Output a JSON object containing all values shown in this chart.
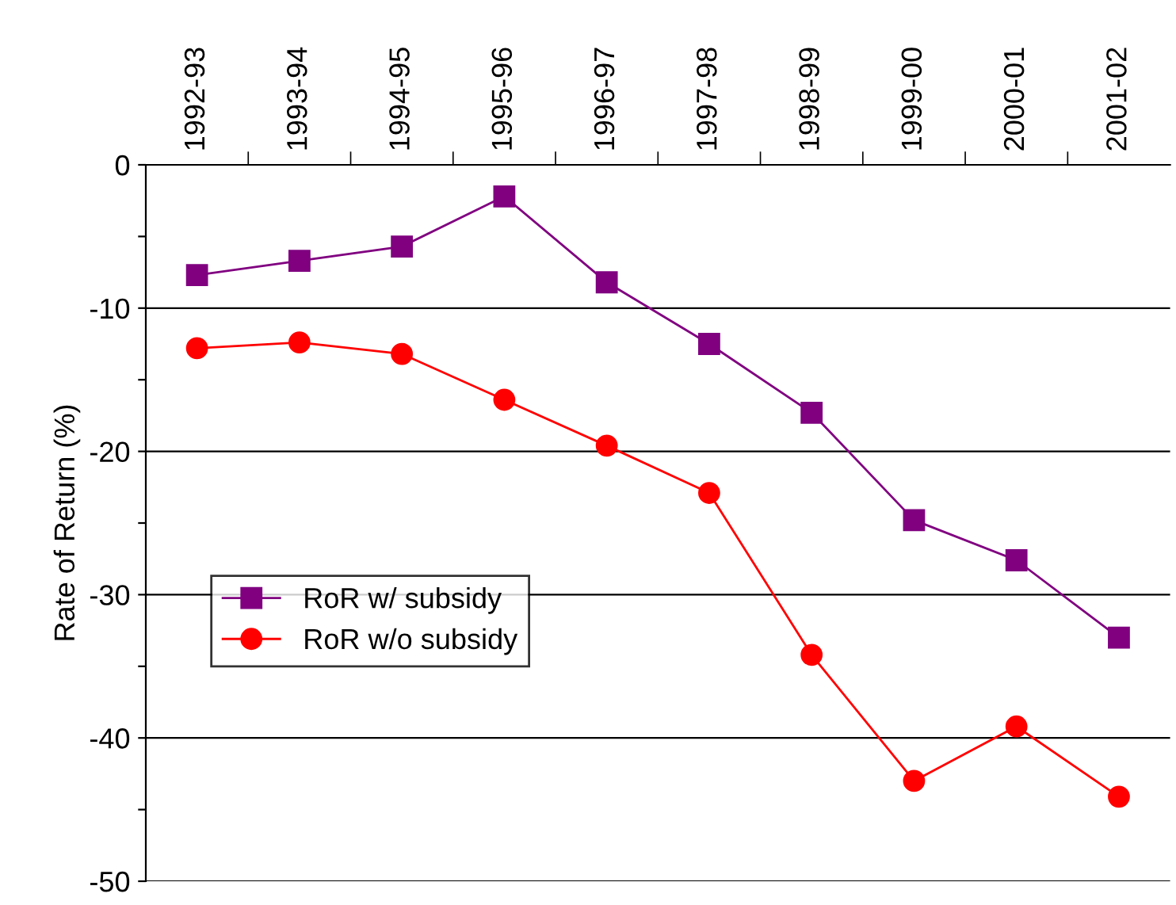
{
  "chart_data": {
    "type": "line",
    "ylabel": "Rate of Return (%)",
    "categories": [
      "1992-93",
      "1993-94",
      "1994-95",
      "1995-96",
      "1996-97",
      "1997-98",
      "1998-99",
      "1999-00",
      "2000-01",
      "2001-02"
    ],
    "series": [
      {
        "name": "RoR w/ subsidy",
        "color": "#800080",
        "marker": "square",
        "values": [
          -7.7,
          -6.7,
          -5.7,
          -2.2,
          -8.2,
          -12.5,
          -17.3,
          -24.8,
          -27.6,
          -33.0
        ]
      },
      {
        "name": "RoR w/o subsidy",
        "color": "#ff0000",
        "marker": "circle",
        "values": [
          -12.8,
          -12.4,
          -13.2,
          -16.4,
          -19.6,
          -22.9,
          -34.2,
          -43.0,
          -39.2,
          -44.1
        ]
      }
    ],
    "ylim": [
      -50,
      0
    ],
    "yticks": [
      0,
      {
        "value": -5,
        "label": null
      },
      -10,
      {
        "value": -15,
        "label": null
      },
      -20,
      {
        "value": -25,
        "label": null
      },
      -30,
      {
        "value": -35,
        "label": null
      },
      -40,
      {
        "value": -45,
        "label": null
      },
      -50
    ],
    "grid": "y",
    "legend": "bottom left",
    "line_style": "solid"
  }
}
